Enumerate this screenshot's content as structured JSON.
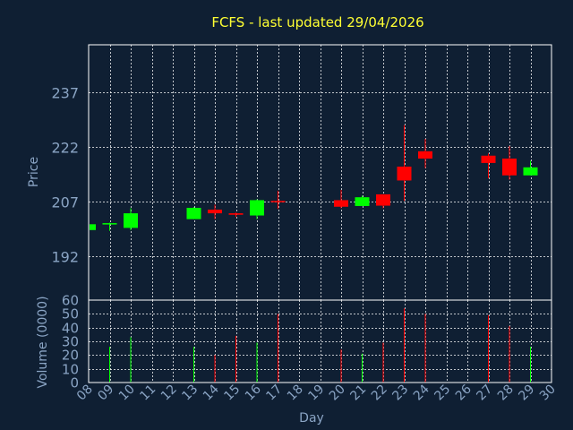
{
  "chart_data": {
    "type": "candlestick",
    "title": "FCFS - last updated 29/04/2026",
    "colors": {
      "background": "#0f1f33",
      "up": "#00ff00",
      "down": "#ff0000",
      "title": "#ffff33",
      "axis_text": "#8aa4c4",
      "grid": "#ffffff"
    },
    "price_panel": {
      "ylabel": "Price",
      "ylim": [
        180,
        250
      ],
      "yticks": [
        192,
        207,
        222,
        237
      ],
      "grid": true
    },
    "volume_panel": {
      "ylabel": "Volume (0000)",
      "ylim": [
        0,
        60
      ],
      "yticks": [
        0,
        10,
        20,
        30,
        40,
        50,
        60
      ],
      "grid": true
    },
    "x_axis": {
      "xlabel": "Day",
      "xlim": [
        8,
        30
      ],
      "tick_labels": [
        "08",
        "09",
        "10",
        "11",
        "12",
        "13",
        "14",
        "15",
        "16",
        "17",
        "18",
        "19",
        "20",
        "21",
        "22",
        "23",
        "24",
        "25",
        "26",
        "27",
        "28",
        "29",
        "30"
      ]
    },
    "candles": [
      {
        "day": 8,
        "open": 199.2,
        "high": 200.8,
        "low": 199.2,
        "close": 200.8
      },
      {
        "day": 9,
        "open": 200.8,
        "high": 201.2,
        "low": 199.0,
        "close": 201.1,
        "volume": 26
      },
      {
        "day": 10,
        "open": 199.8,
        "high": 205.2,
        "low": 199.2,
        "close": 203.8,
        "volume": 33
      },
      {
        "day": 13,
        "open": 202.2,
        "high": 205.5,
        "low": 202.2,
        "close": 205.3,
        "volume": 26
      },
      {
        "day": 14,
        "open": 204.8,
        "high": 206.2,
        "low": 202.2,
        "close": 203.8,
        "volume": 20
      },
      {
        "day": 15,
        "open": 203.8,
        "high": 204.0,
        "low": 202.8,
        "close": 203.4,
        "volume": 34
      },
      {
        "day": 16,
        "open": 203.2,
        "high": 207.6,
        "low": 202.2,
        "close": 207.4,
        "volume": 29
      },
      {
        "day": 17,
        "open": 207.2,
        "high": 210.0,
        "low": 205.0,
        "close": 207.1,
        "volume": 50
      },
      {
        "day": 20,
        "open": 207.4,
        "high": 210.2,
        "low": 205.2,
        "close": 205.6,
        "volume": 24
      },
      {
        "day": 21,
        "open": 205.8,
        "high": 208.6,
        "low": 205.8,
        "close": 208.2,
        "volume": 21
      },
      {
        "day": 22,
        "open": 209.0,
        "high": 209.0,
        "low": 205.2,
        "close": 205.9,
        "volume": 29
      },
      {
        "day": 23,
        "open": 216.6,
        "high": 228.0,
        "low": 207.2,
        "close": 212.8,
        "volume": 54
      },
      {
        "day": 24,
        "open": 220.8,
        "high": 224.2,
        "low": 216.2,
        "close": 218.8,
        "volume": 50
      },
      {
        "day": 27,
        "open": 219.6,
        "high": 220.2,
        "low": 213.4,
        "close": 217.6,
        "volume": 49
      },
      {
        "day": 28,
        "open": 218.8,
        "high": 222.2,
        "low": 213.0,
        "close": 214.2,
        "volume": 41
      },
      {
        "day": 29,
        "open": 214.2,
        "high": 218.2,
        "low": 214.2,
        "close": 216.4,
        "volume": 26
      }
    ]
  }
}
